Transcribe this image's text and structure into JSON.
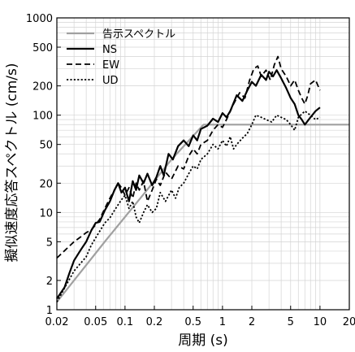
{
  "chart_data": {
    "type": "line",
    "xlabel": "周期 (s)",
    "ylabel": "擬似速度応答スペクトル (cm/s)",
    "xscale": "log",
    "yscale": "log",
    "xlim": [
      0.02,
      20
    ],
    "ylim": [
      1,
      1000
    ],
    "grid": true,
    "legend_position": "top-left",
    "x_ticks": [
      {
        "v": 0.02,
        "label": "0.02"
      },
      {
        "v": 0.05,
        "label": "0.05"
      },
      {
        "v": 0.1,
        "label": "0.1"
      },
      {
        "v": 0.2,
        "label": "0.2"
      },
      {
        "v": 0.5,
        "label": "0.5"
      },
      {
        "v": 1,
        "label": "1"
      },
      {
        "v": 2,
        "label": "2"
      },
      {
        "v": 5,
        "label": "5"
      },
      {
        "v": 10,
        "label": "10"
      },
      {
        "v": 20,
        "label": "20"
      }
    ],
    "y_ticks": [
      {
        "v": 1,
        "label": "1"
      },
      {
        "v": 2,
        "label": "2"
      },
      {
        "v": 5,
        "label": "5"
      },
      {
        "v": 10,
        "label": "10"
      },
      {
        "v": 20,
        "label": "20"
      },
      {
        "v": 50,
        "label": "50"
      },
      {
        "v": 100,
        "label": "100"
      },
      {
        "v": 200,
        "label": "200"
      },
      {
        "v": 500,
        "label": "500"
      },
      {
        "v": 1000,
        "label": "1000"
      }
    ],
    "series": [
      {
        "name": "告示スペクトル",
        "color": "#a0a0a0",
        "style": "solid",
        "points": [
          [
            0.02,
            1.2
          ],
          [
            0.064,
            5.2
          ],
          [
            0.16,
            16
          ],
          [
            0.3,
            35
          ],
          [
            0.64,
            80
          ],
          [
            1,
            80
          ],
          [
            2,
            80
          ],
          [
            5,
            80
          ],
          [
            10,
            80
          ],
          [
            20,
            80
          ]
        ]
      },
      {
        "name": "NS",
        "color": "#000000",
        "style": "solid",
        "points": [
          [
            0.02,
            1.3
          ],
          [
            0.024,
            1.7
          ],
          [
            0.027,
            2.4
          ],
          [
            0.03,
            3.2
          ],
          [
            0.035,
            4.1
          ],
          [
            0.04,
            5.0
          ],
          [
            0.045,
            6.5
          ],
          [
            0.05,
            7.8
          ],
          [
            0.055,
            8.0
          ],
          [
            0.062,
            10.5
          ],
          [
            0.07,
            13
          ],
          [
            0.078,
            17
          ],
          [
            0.085,
            20
          ],
          [
            0.092,
            16
          ],
          [
            0.1,
            18
          ],
          [
            0.11,
            13
          ],
          [
            0.12,
            21
          ],
          [
            0.13,
            17
          ],
          [
            0.14,
            24
          ],
          [
            0.155,
            20
          ],
          [
            0.17,
            25
          ],
          [
            0.19,
            19
          ],
          [
            0.21,
            23
          ],
          [
            0.23,
            30
          ],
          [
            0.25,
            24
          ],
          [
            0.28,
            40
          ],
          [
            0.31,
            35
          ],
          [
            0.35,
            48
          ],
          [
            0.4,
            55
          ],
          [
            0.45,
            48
          ],
          [
            0.5,
            62
          ],
          [
            0.55,
            55
          ],
          [
            0.6,
            72
          ],
          [
            0.7,
            78
          ],
          [
            0.8,
            92
          ],
          [
            0.9,
            85
          ],
          [
            1.0,
            105
          ],
          [
            1.1,
            95
          ],
          [
            1.2,
            110
          ],
          [
            1.4,
            160
          ],
          [
            1.6,
            140
          ],
          [
            1.8,
            180
          ],
          [
            2.0,
            220
          ],
          [
            2.2,
            200
          ],
          [
            2.5,
            260
          ],
          [
            2.8,
            230
          ],
          [
            3.0,
            280
          ],
          [
            3.3,
            250
          ],
          [
            3.6,
            290
          ],
          [
            4.0,
            240
          ],
          [
            4.5,
            190
          ],
          [
            5.0,
            150
          ],
          [
            5.5,
            130
          ],
          [
            6.0,
            100
          ],
          [
            6.5,
            90
          ],
          [
            7.0,
            80
          ],
          [
            8.0,
            95
          ],
          [
            9.0,
            110
          ],
          [
            10.0,
            120
          ]
        ]
      },
      {
        "name": "EW",
        "color": "#000000",
        "style": "dashed",
        "points": [
          [
            0.02,
            3.4
          ],
          [
            0.025,
            4.2
          ],
          [
            0.03,
            5.0
          ],
          [
            0.035,
            5.6
          ],
          [
            0.04,
            6.2
          ],
          [
            0.045,
            6.6
          ],
          [
            0.05,
            7.5
          ],
          [
            0.055,
            8.5
          ],
          [
            0.062,
            11
          ],
          [
            0.07,
            14
          ],
          [
            0.078,
            17
          ],
          [
            0.085,
            20
          ],
          [
            0.092,
            18
          ],
          [
            0.1,
            15
          ],
          [
            0.11,
            18
          ],
          [
            0.12,
            14
          ],
          [
            0.13,
            20
          ],
          [
            0.14,
            17
          ],
          [
            0.155,
            21
          ],
          [
            0.17,
            13
          ],
          [
            0.19,
            17
          ],
          [
            0.21,
            22
          ],
          [
            0.23,
            19
          ],
          [
            0.26,
            26
          ],
          [
            0.3,
            22
          ],
          [
            0.35,
            30
          ],
          [
            0.4,
            28
          ],
          [
            0.45,
            38
          ],
          [
            0.5,
            45
          ],
          [
            0.55,
            40
          ],
          [
            0.6,
            50
          ],
          [
            0.7,
            55
          ],
          [
            0.8,
            70
          ],
          [
            0.9,
            80
          ],
          [
            1.0,
            75
          ],
          [
            1.1,
            90
          ],
          [
            1.3,
            130
          ],
          [
            1.5,
            170
          ],
          [
            1.7,
            150
          ],
          [
            1.9,
            230
          ],
          [
            2.1,
            300
          ],
          [
            2.3,
            320
          ],
          [
            2.5,
            250
          ],
          [
            2.8,
            290
          ],
          [
            3.1,
            230
          ],
          [
            3.4,
            330
          ],
          [
            3.7,
            400
          ],
          [
            4.0,
            300
          ],
          [
            4.5,
            250
          ],
          [
            5.0,
            200
          ],
          [
            5.5,
            230
          ],
          [
            6.0,
            180
          ],
          [
            6.5,
            150
          ],
          [
            7.0,
            130
          ],
          [
            7.5,
            160
          ],
          [
            8.0,
            210
          ],
          [
            9.0,
            230
          ],
          [
            10.0,
            180
          ]
        ]
      },
      {
        "name": "UD",
        "color": "#000000",
        "style": "dotted",
        "points": [
          [
            0.02,
            1.2
          ],
          [
            0.025,
            1.8
          ],
          [
            0.03,
            2.5
          ],
          [
            0.035,
            3.0
          ],
          [
            0.04,
            3.5
          ],
          [
            0.045,
            4.6
          ],
          [
            0.05,
            5.5
          ],
          [
            0.055,
            6.4
          ],
          [
            0.062,
            7.8
          ],
          [
            0.07,
            8.8
          ],
          [
            0.078,
            10.5
          ],
          [
            0.085,
            12
          ],
          [
            0.092,
            13.5
          ],
          [
            0.1,
            15
          ],
          [
            0.11,
            11
          ],
          [
            0.12,
            13
          ],
          [
            0.13,
            9
          ],
          [
            0.14,
            7.8
          ],
          [
            0.155,
            10
          ],
          [
            0.17,
            12
          ],
          [
            0.19,
            10
          ],
          [
            0.21,
            11
          ],
          [
            0.23,
            16
          ],
          [
            0.26,
            13
          ],
          [
            0.3,
            17
          ],
          [
            0.33,
            14
          ],
          [
            0.36,
            18
          ],
          [
            0.4,
            20
          ],
          [
            0.45,
            25
          ],
          [
            0.5,
            30
          ],
          [
            0.55,
            28
          ],
          [
            0.6,
            35
          ],
          [
            0.7,
            40
          ],
          [
            0.8,
            50
          ],
          [
            0.9,
            45
          ],
          [
            1.0,
            55
          ],
          [
            1.1,
            48
          ],
          [
            1.2,
            60
          ],
          [
            1.3,
            45
          ],
          [
            1.4,
            50
          ],
          [
            1.6,
            58
          ],
          [
            1.8,
            65
          ],
          [
            2.0,
            80
          ],
          [
            2.2,
            100
          ],
          [
            2.5,
            95
          ],
          [
            2.8,
            90
          ],
          [
            3.2,
            85
          ],
          [
            3.6,
            100
          ],
          [
            4.0,
            95
          ],
          [
            4.5,
            90
          ],
          [
            5.0,
            80
          ],
          [
            5.5,
            70
          ],
          [
            6.0,
            95
          ],
          [
            7.0,
            110
          ],
          [
            8.0,
            100
          ],
          [
            9.0,
            90
          ],
          [
            10.0,
            95
          ]
        ]
      }
    ]
  }
}
